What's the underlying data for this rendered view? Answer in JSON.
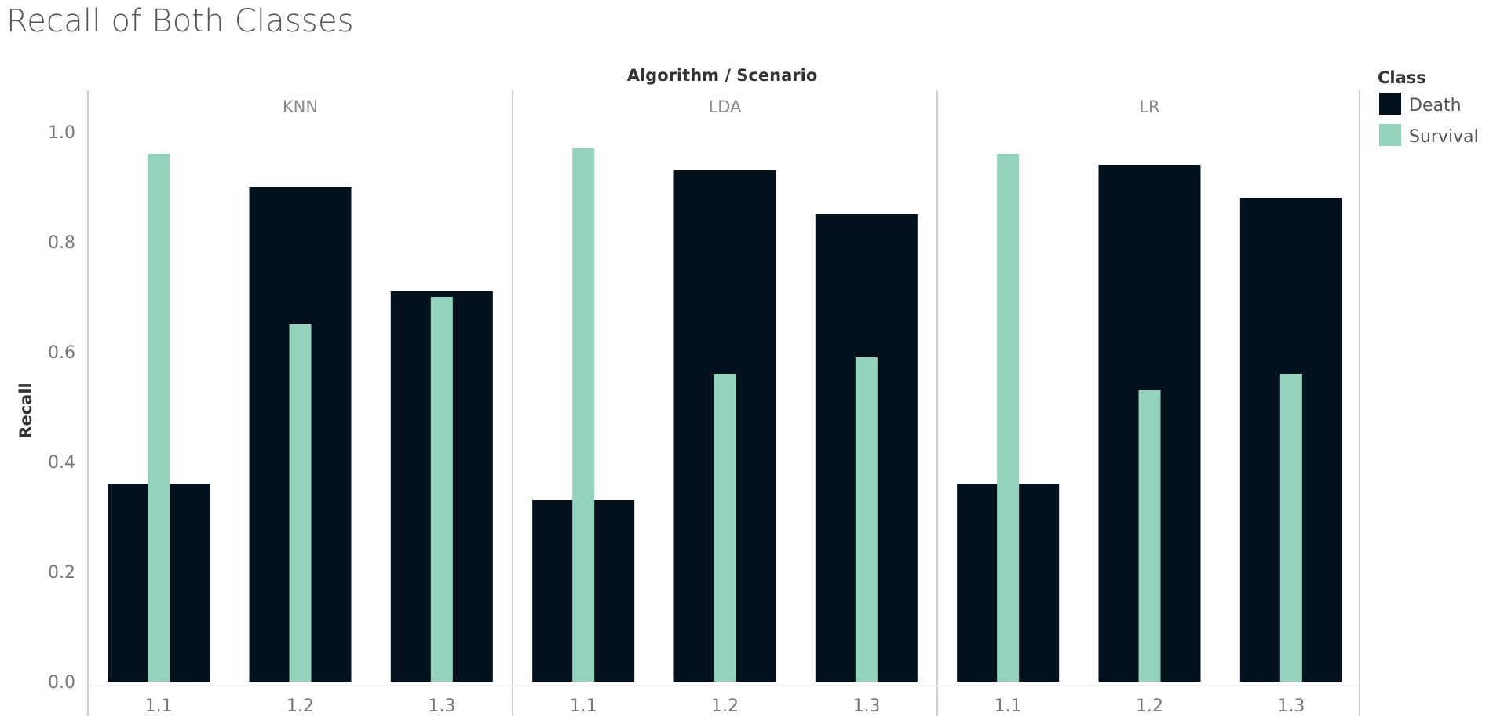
{
  "chart_data": {
    "type": "bar",
    "title": "Recall of Both Classes",
    "column_header": "Algorithm / Scenario",
    "ylabel": "Recall",
    "ylim": [
      0,
      1.0
    ],
    "yticks": [
      "0.0",
      "0.2",
      "0.4",
      "0.6",
      "0.8",
      "1.0"
    ],
    "grid": false,
    "legend": {
      "title": "Class",
      "placement": "top-right",
      "entries": [
        {
          "name": "Death",
          "color": "#02111b"
        },
        {
          "name": "Survival",
          "color": "#95d2bc"
        }
      ]
    },
    "groups": [
      {
        "name": "KNN",
        "categories": [
          "1.1",
          "1.2",
          "1.3"
        ],
        "series": [
          {
            "name": "Death",
            "values": [
              0.36,
              0.9,
              0.71
            ]
          },
          {
            "name": "Survival",
            "values": [
              0.96,
              0.65,
              0.7
            ]
          }
        ]
      },
      {
        "name": "LDA",
        "categories": [
          "1.1",
          "1.2",
          "1.3"
        ],
        "series": [
          {
            "name": "Death",
            "values": [
              0.33,
              0.93,
              0.85
            ]
          },
          {
            "name": "Survival",
            "values": [
              0.97,
              0.56,
              0.59
            ]
          }
        ]
      },
      {
        "name": "LR",
        "categories": [
          "1.1",
          "1.2",
          "1.3"
        ],
        "series": [
          {
            "name": "Death",
            "values": [
              0.36,
              0.94,
              0.88
            ]
          },
          {
            "name": "Survival",
            "values": [
              0.96,
              0.53,
              0.56
            ]
          }
        ]
      }
    ]
  }
}
